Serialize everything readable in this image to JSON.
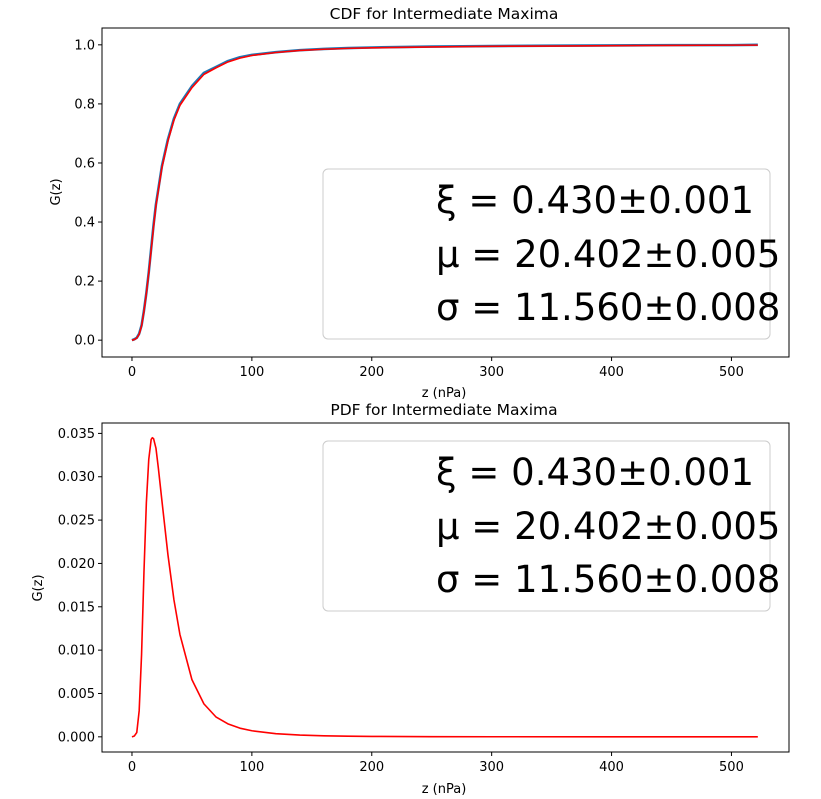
{
  "chart_data": [
    {
      "type": "line",
      "title": "CDF for Intermediate Maxima",
      "xlabel": "z (nPa)",
      "ylabel": "G(z)",
      "xlim": [
        -25,
        548
      ],
      "ylim": [
        -0.057,
        1.057
      ],
      "xticks": [
        "0",
        "100",
        "200",
        "300",
        "400",
        "500"
      ],
      "yticks": [
        "0.0",
        "0.2",
        "0.4",
        "0.6",
        "0.8",
        "1.0"
      ],
      "grid": false,
      "legend_position": "lower-right",
      "legend_lines": [
        "ξ = 0.430±0.001",
        "μ = 20.402±0.005",
        "σ = 11.560±0.008"
      ],
      "series": [
        {
          "kind": "empirical",
          "color": "#1f77b4",
          "x": [
            0,
            2,
            4,
            6,
            8,
            10,
            12,
            14,
            16,
            18,
            20,
            25,
            30,
            35,
            40,
            50,
            60,
            70,
            80,
            90,
            100,
            120,
            140,
            160,
            180,
            200,
            250,
            300,
            350,
            400,
            450,
            500,
            522
          ],
          "y": [
            0.0,
            0.003,
            0.008,
            0.022,
            0.05,
            0.1,
            0.16,
            0.23,
            0.31,
            0.39,
            0.46,
            0.59,
            0.68,
            0.75,
            0.8,
            0.86,
            0.905,
            0.925,
            0.945,
            0.958,
            0.966,
            0.975,
            0.982,
            0.986,
            0.989,
            0.991,
            0.994,
            0.996,
            0.997,
            0.998,
            0.999,
            0.999,
            1.0
          ]
        },
        {
          "kind": "fit",
          "color": "#ff0000",
          "x": [
            0,
            2,
            4,
            6,
            8,
            10,
            12,
            14,
            16,
            18,
            20,
            25,
            30,
            35,
            40,
            50,
            60,
            70,
            80,
            90,
            100,
            120,
            140,
            160,
            180,
            200,
            250,
            300,
            350,
            400,
            450,
            500,
            522
          ],
          "y": [
            0.0,
            0.002,
            0.007,
            0.02,
            0.048,
            0.097,
            0.158,
            0.228,
            0.305,
            0.383,
            0.455,
            0.585,
            0.675,
            0.745,
            0.795,
            0.855,
            0.9,
            0.922,
            0.942,
            0.955,
            0.964,
            0.974,
            0.981,
            0.985,
            0.988,
            0.99,
            0.993,
            0.995,
            0.996,
            0.997,
            0.998,
            0.999,
            0.999
          ]
        }
      ]
    },
    {
      "type": "line",
      "title": "PDF for Intermediate Maxima",
      "xlabel": "z (nPa)",
      "ylabel": "G(z)",
      "xlim": [
        -25,
        548
      ],
      "ylim": [
        -0.00175,
        0.0362
      ],
      "xticks": [
        "0",
        "100",
        "200",
        "300",
        "400",
        "500"
      ],
      "yticks": [
        "0.000",
        "0.005",
        "0.010",
        "0.015",
        "0.020",
        "0.025",
        "0.030",
        "0.035"
      ],
      "grid": false,
      "legend_position": "upper-right",
      "legend_lines": [
        "ξ = 0.430±0.001",
        "μ = 20.402±0.005",
        "σ = 11.560±0.008"
      ],
      "series": [
        {
          "kind": "fit",
          "color": "#ff0000",
          "x": [
            0,
            2,
            4,
            6,
            8,
            10,
            12,
            14,
            16,
            17,
            18,
            20,
            22,
            25,
            30,
            35,
            40,
            50,
            60,
            70,
            80,
            90,
            100,
            120,
            140,
            160,
            180,
            200,
            250,
            300,
            400,
            522
          ],
          "y": [
            0.0,
            0.0001,
            0.0005,
            0.003,
            0.0095,
            0.019,
            0.027,
            0.032,
            0.0343,
            0.0345,
            0.0344,
            0.0333,
            0.031,
            0.0272,
            0.021,
            0.0158,
            0.0118,
            0.0066,
            0.0038,
            0.0023,
            0.0015,
            0.001,
            0.0007,
            0.00036,
            0.0002,
            0.00012,
            8e-05,
            5e-05,
            2e-05,
            1e-05,
            3e-06,
            0.0
          ]
        }
      ]
    }
  ]
}
